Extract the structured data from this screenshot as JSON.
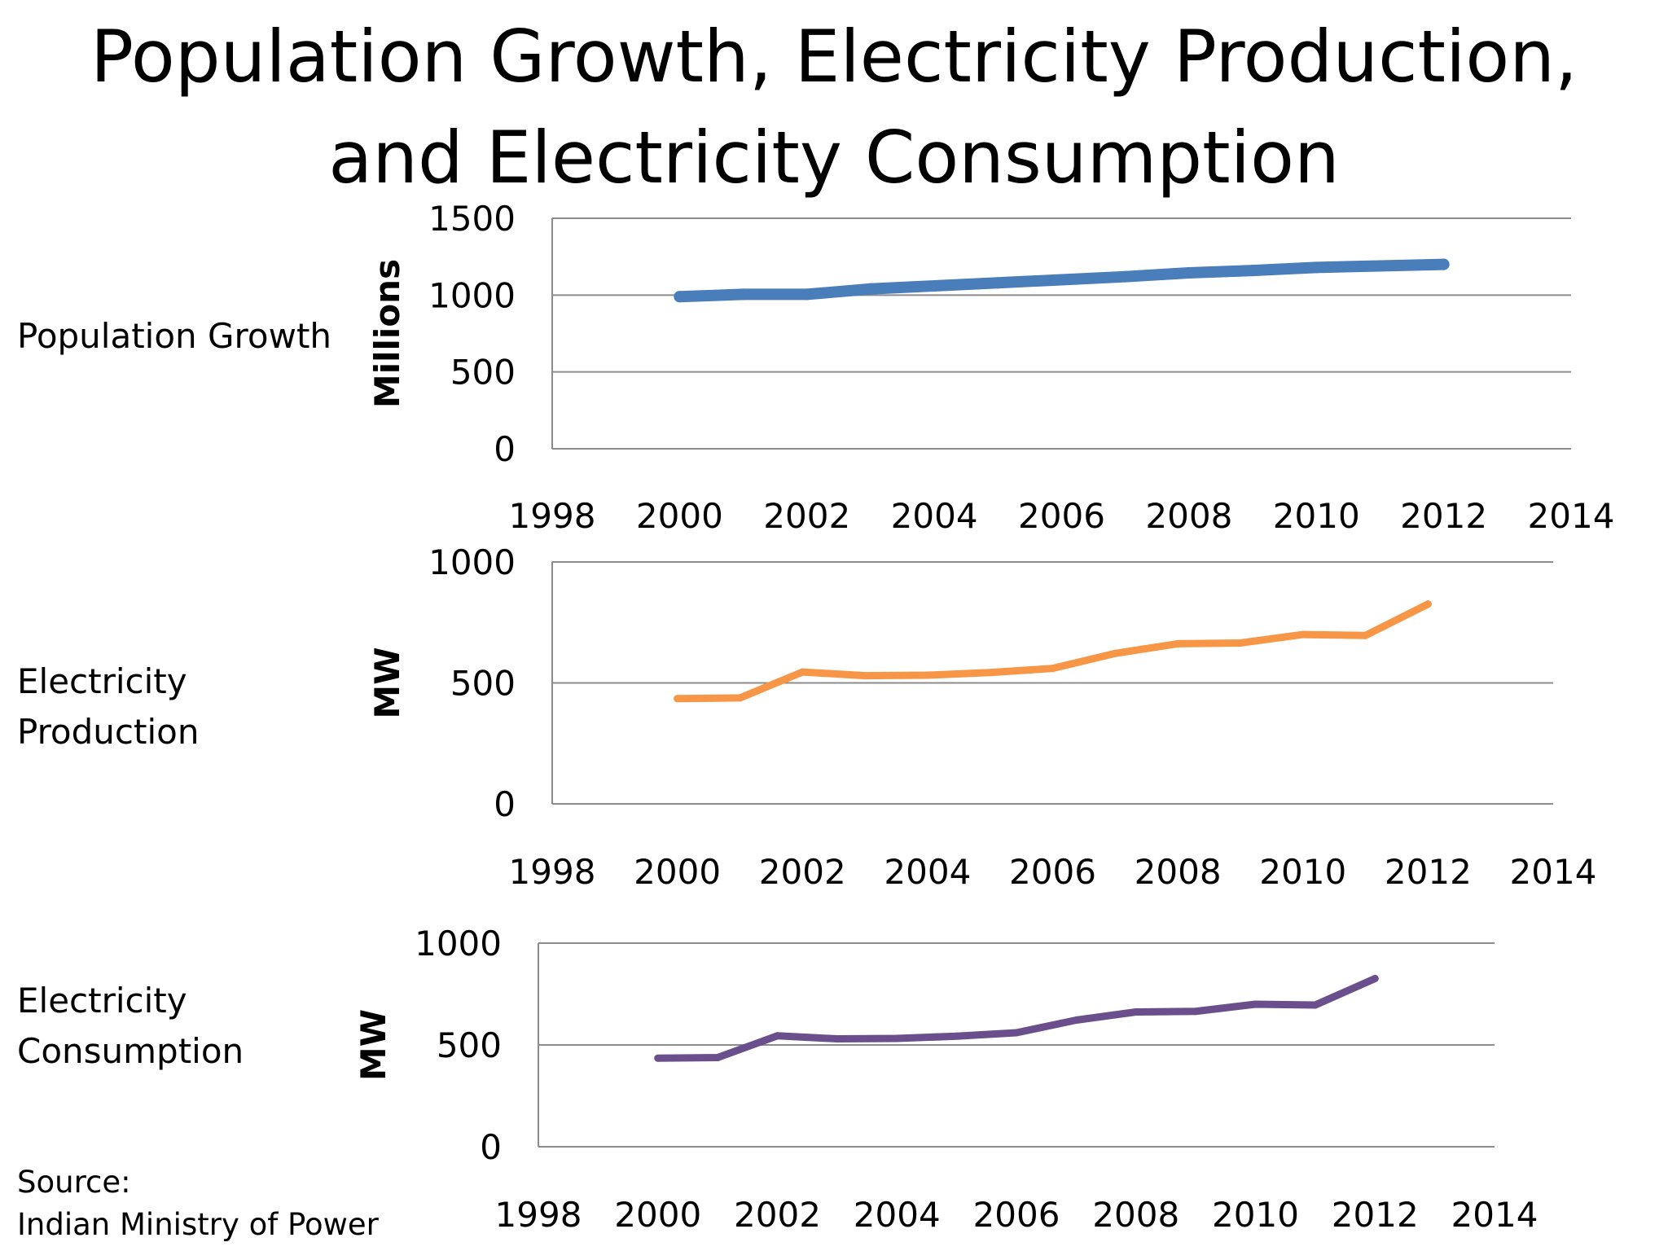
{
  "title_lines": [
    "Population Growth, Electricity Production,",
    "and Electricity Consumption"
  ],
  "row_labels": [
    [
      "Population Growth"
    ],
    [
      "Electricity",
      "Production"
    ],
    [
      "Electricity",
      "Consumption"
    ]
  ],
  "source_lines": [
    "Source:",
    "Indian Ministry of Power"
  ],
  "chart_data": [
    {
      "type": "line",
      "ylabel": "Millions",
      "xlim": [
        1998,
        2014
      ],
      "xticks": [
        "1998",
        "2000",
        "2002",
        "2004",
        "2006",
        "2008",
        "2010",
        "2012",
        "2014"
      ],
      "ylim": [
        0,
        1500
      ],
      "yticks": [
        "0",
        "500",
        "1000",
        "1500"
      ],
      "grid": true,
      "color": "#4a7ebb",
      "x": [
        2000,
        2001,
        2002,
        2003,
        2004,
        2005,
        2006,
        2007,
        2008,
        2009,
        2010,
        2011,
        2012
      ],
      "values": [
        990,
        1005,
        1005,
        1040,
        1060,
        1080,
        1100,
        1120,
        1145,
        1160,
        1180,
        1190,
        1200
      ]
    },
    {
      "type": "line",
      "ylabel": "MW",
      "xlim": [
        1998,
        2014
      ],
      "xticks": [
        "1998",
        "2000",
        "2002",
        "2004",
        "2006",
        "2008",
        "2010",
        "2012",
        "2014"
      ],
      "ylim": [
        0,
        1000
      ],
      "yticks": [
        "0",
        "500",
        "1000"
      ],
      "grid": true,
      "color": "#f79646",
      "x": [
        2000,
        2001,
        2002,
        2003,
        2004,
        2005,
        2006,
        2007,
        2008,
        2009,
        2010,
        2011,
        2012
      ],
      "values": [
        435,
        438,
        545,
        530,
        532,
        543,
        560,
        622,
        662,
        665,
        700,
        696,
        826
      ]
    },
    {
      "type": "line",
      "ylabel": "MW",
      "xlim": [
        1998,
        2014
      ],
      "xticks": [
        "1998",
        "2000",
        "2002",
        "2004",
        "2006",
        "2008",
        "2010",
        "2012",
        "2014"
      ],
      "ylim": [
        0,
        1000
      ],
      "yticks": [
        "0",
        "500",
        "1000"
      ],
      "grid": true,
      "color": "#6a4f8c",
      "x": [
        2000,
        2001,
        2002,
        2003,
        2004,
        2005,
        2006,
        2007,
        2008,
        2009,
        2010,
        2011,
        2012
      ],
      "values": [
        435,
        438,
        545,
        530,
        532,
        543,
        560,
        622,
        662,
        665,
        700,
        696,
        826
      ]
    }
  ]
}
